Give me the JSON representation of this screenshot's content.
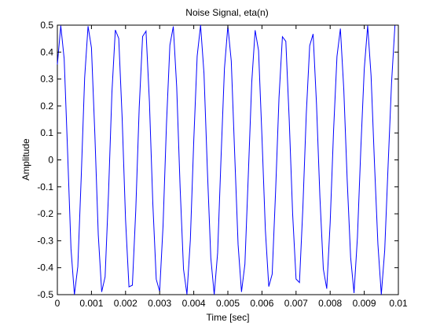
{
  "chart_data": {
    "type": "line",
    "title": "Noise Signal, eta(n)",
    "xlabel": "Time [sec]",
    "ylabel": "Amplitude",
    "xlim": [
      0,
      0.01
    ],
    "ylim": [
      -0.5,
      0.5
    ],
    "grid": false,
    "xticks": [
      0,
      0.001,
      0.002,
      0.003,
      0.004,
      0.005,
      0.006,
      0.007,
      0.008,
      0.009,
      0.01
    ],
    "xtick_labels": [
      "0",
      "0.001",
      "0.002",
      "0.003",
      "0.004",
      "0.005",
      "0.006",
      "0.007",
      "0.008",
      "0.009",
      "0.01"
    ],
    "yticks": [
      -0.5,
      -0.4,
      -0.3,
      -0.2,
      -0.1,
      0,
      0.1,
      0.2,
      0.3,
      0.4,
      0.5
    ],
    "ytick_labels": [
      "-0.5",
      "-0.4",
      "-0.3",
      "-0.2",
      "-0.1",
      "0",
      "0.1",
      "0.2",
      "0.3",
      "0.4",
      "0.5"
    ],
    "series": [
      {
        "color": "#0000ff",
        "x": [
          0,
          0.0001,
          0.0002,
          0.0003,
          0.0004,
          0.0005,
          0.0006,
          0.0007,
          0.0008,
          0.0009,
          0.001,
          0.0011,
          0.0012,
          0.0013,
          0.0014,
          0.0015,
          0.0016,
          0.0017,
          0.0018,
          0.0019,
          0.002,
          0.0021,
          0.0022,
          0.0023,
          0.0024,
          0.0025,
          0.0026,
          0.0027,
          0.0028,
          0.0029,
          0.003,
          0.0031,
          0.0032,
          0.0033,
          0.0034,
          0.0035,
          0.0036,
          0.0037,
          0.0038,
          0.0039,
          0.004,
          0.0041,
          0.0042,
          0.0043,
          0.0044,
          0.0045,
          0.0046,
          0.0047,
          0.0048,
          0.0049,
          0.005,
          0.0051,
          0.0052,
          0.0053,
          0.0054,
          0.0055,
          0.0056,
          0.0057,
          0.0058,
          0.0059,
          0.006,
          0.0061,
          0.0062,
          0.0063,
          0.0064,
          0.0065,
          0.0066,
          0.0067,
          0.0068,
          0.0069,
          0.007,
          0.0071,
          0.0072,
          0.0073,
          0.0074,
          0.0075,
          0.0076,
          0.0077,
          0.0078,
          0.0079,
          0.008,
          0.0081,
          0.0082,
          0.0083,
          0.0084,
          0.0085,
          0.0086,
          0.0087,
          0.0088,
          0.0089,
          0.009,
          0.0091,
          0.0092,
          0.0093,
          0.0094,
          0.0095,
          0.0096,
          0.0097,
          0.0098,
          0.0099
        ],
        "y": [
          0.354,
          0.498,
          0.375,
          0.031,
          -0.33,
          -0.5,
          -0.396,
          -0.063,
          0.304,
          0.496,
          0.416,
          0.094,
          -0.278,
          -0.49,
          -0.434,
          -0.125,
          0.25,
          0.482,
          0.451,
          0.156,
          -0.222,
          -0.471,
          -0.465,
          -0.185,
          0.193,
          0.458,
          0.478,
          0.215,
          -0.163,
          -0.443,
          -0.488,
          -0.243,
          0.133,
          0.426,
          0.495,
          0.27,
          -0.102,
          -0.406,
          -0.499,
          -0.297,
          0.071,
          0.385,
          0.5,
          0.321,
          -0.039,
          -0.363,
          -0.5,
          -0.345,
          0.008,
          0.339,
          0.497,
          0.367,
          0.023,
          -0.314,
          -0.49,
          -0.387,
          -0.055,
          0.287,
          0.481,
          0.406,
          0.086,
          -0.26,
          -0.47,
          -0.424,
          -0.117,
          0.231,
          0.457,
          0.44,
          0.147,
          -0.201,
          -0.442,
          -0.455,
          -0.177,
          0.171,
          0.424,
          0.467,
          0.206,
          -0.139,
          -0.405,
          -0.478,
          -0.234,
          0.108,
          0.384,
          0.487,
          0.261,
          -0.076,
          -0.361,
          -0.494,
          -0.287,
          0.044,
          0.337,
          0.498,
          0.312,
          -0.013,
          -0.312,
          -0.5,
          -0.335,
          -0.019,
          0.285,
          0.5
        ]
      }
    ]
  }
}
